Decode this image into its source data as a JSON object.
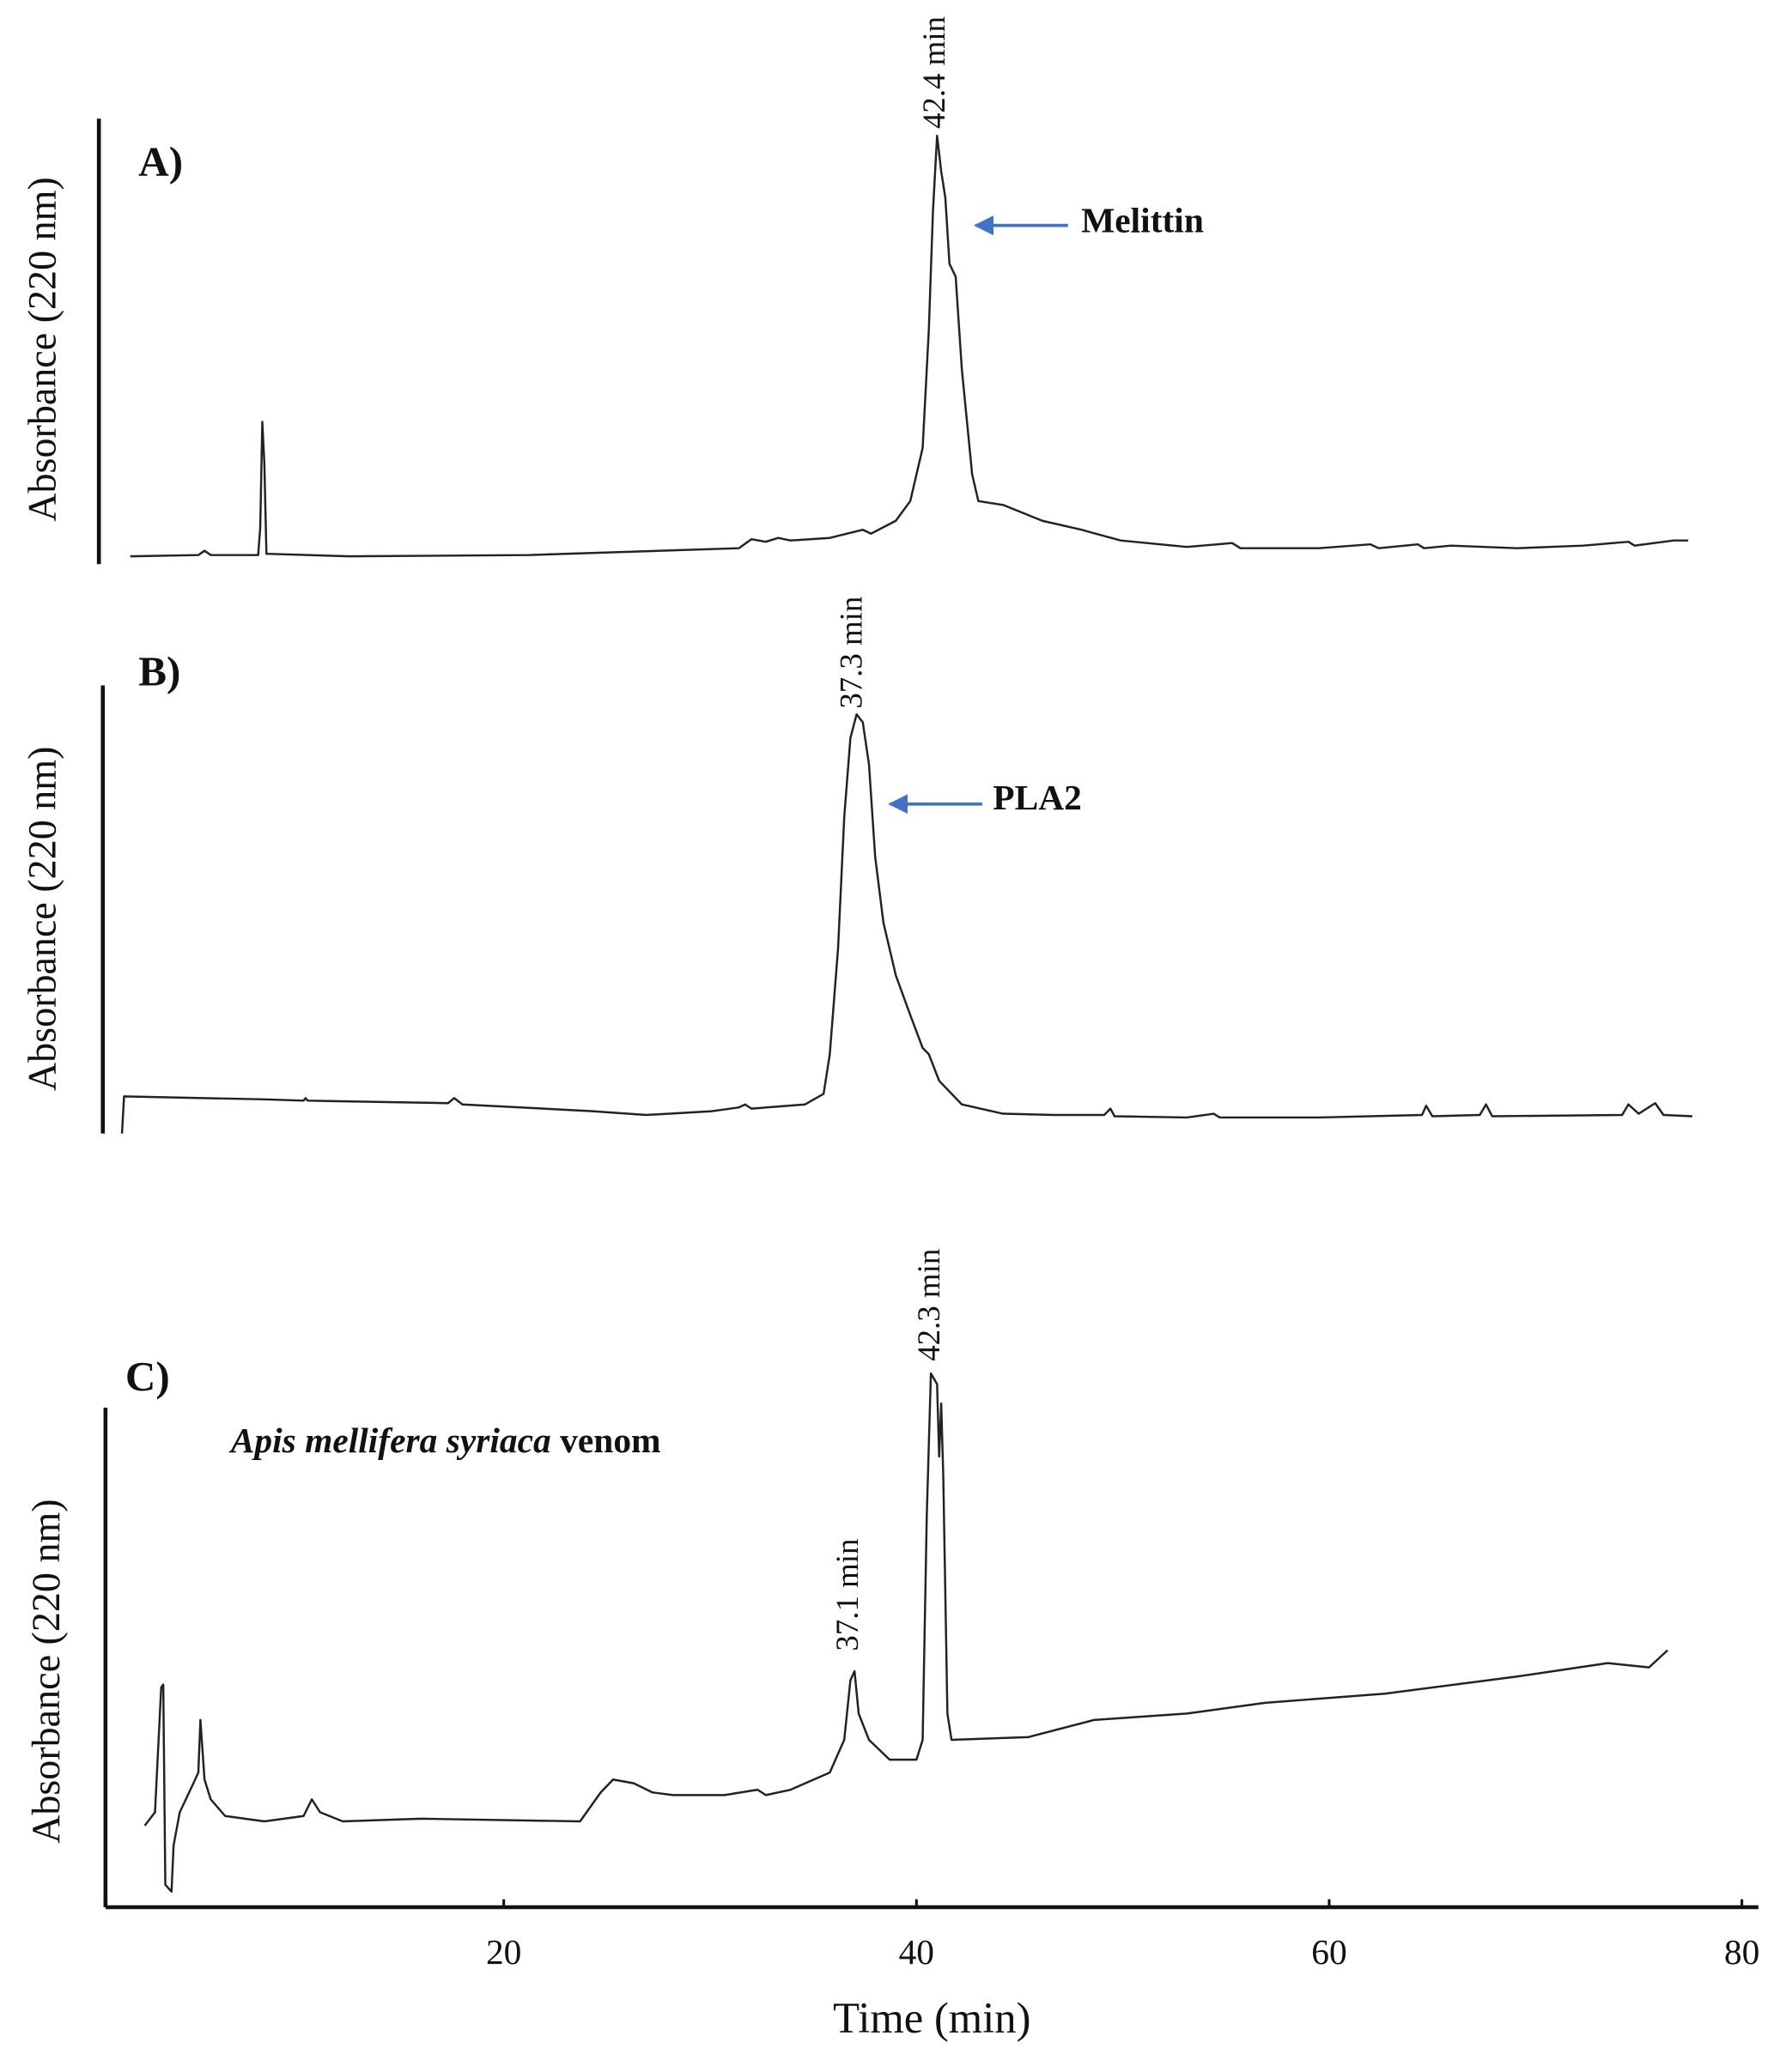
{
  "chart_data": [
    {
      "type": "line",
      "title": "A)",
      "y_label": "Absorbance (220 nm)",
      "color": "#222222",
      "xlim": [
        0.7,
        80.8
      ],
      "ylim": [
        0,
        100
      ],
      "x": [
        1.9,
        5.2,
        5.5,
        5.8,
        8.1,
        8.2,
        8.3,
        8.4,
        8.5,
        12.5,
        21.2,
        31.4,
        32.0,
        32.7,
        33.3,
        33.9,
        35.8,
        37.4,
        37.8,
        39.0,
        39.7,
        40.3,
        40.6,
        40.8,
        41.0,
        41.2,
        41.4,
        41.6,
        41.9,
        42.2,
        42.7,
        43.0,
        44.2,
        46.1,
        48.0,
        49.9,
        53.1,
        55.3,
        55.7,
        59.5,
        62.0,
        62.4,
        64.3,
        64.6,
        65.9,
        69.1,
        72.3,
        74.5,
        74.8,
        76.7,
        77.4
      ],
      "values": [
        0.9,
        1.2,
        2.2,
        1.2,
        1.2,
        7.7,
        32.3,
        22.5,
        1.5,
        0.9,
        1.2,
        2.8,
        4.9,
        4.3,
        5.2,
        4.6,
        5.2,
        7.1,
        6.2,
        9.2,
        13.8,
        26.2,
        53.8,
        81.5,
        99.1,
        90.8,
        84.6,
        69.2,
        66.2,
        44.6,
        20.0,
        13.8,
        12.9,
        9.2,
        7.1,
        4.6,
        3.1,
        4.0,
        2.8,
        2.8,
        3.7,
        2.8,
        3.7,
        2.8,
        3.4,
        2.8,
        3.4,
        4.3,
        3.4,
        4.6,
        4.6
      ],
      "annotations": [
        {
          "text": "42.4 min"
        },
        {
          "text": "Melittin",
          "arrow_color": "#4472c4"
        }
      ]
    },
    {
      "type": "line",
      "title": "B)",
      "y_label": "Absorbance (220 nm)",
      "color": "#222222",
      "xlim": [
        0.7,
        80.8
      ],
      "ylim": [
        0,
        100
      ],
      "x": [
        1.5,
        1.6,
        8.4,
        10.3,
        10.4,
        10.5,
        17.3,
        17.6,
        18.0,
        24.3,
        26.9,
        30.1,
        31.4,
        31.7,
        32.0,
        34.6,
        35.5,
        35.8,
        36.2,
        36.5,
        36.8,
        37.1,
        37.4,
        37.7,
        38.0,
        38.4,
        39.0,
        39.7,
        40.3,
        40.6,
        41.1,
        42.2,
        44.2,
        46.7,
        49.1,
        49.4,
        49.6,
        53.1,
        54.4,
        54.7,
        59.5,
        64.5,
        64.7,
        65.0,
        67.3,
        67.6,
        67.9,
        74.2,
        74.5,
        75.0,
        75.8,
        76.2,
        77.6
      ],
      "values": [
        0,
        8.8,
        8.1,
        7.8,
        8.4,
        7.8,
        7.2,
        8.4,
        6.9,
        5.3,
        4.4,
        5.3,
        6.2,
        6.9,
        5.9,
        6.9,
        9.4,
        18.8,
        43.8,
        75.0,
        93.8,
        99.4,
        97.5,
        87.5,
        65.6,
        50.0,
        37.5,
        28.1,
        20.3,
        18.8,
        12.5,
        6.9,
        4.7,
        4.4,
        4.4,
        5.9,
        4.1,
        3.8,
        4.7,
        3.8,
        3.8,
        4.4,
        6.6,
        4.1,
        4.4,
        6.9,
        4.1,
        4.4,
        6.9,
        4.7,
        7.2,
        4.4,
        4.1
      ],
      "annotations": [
        {
          "text": "37.3 min"
        },
        {
          "text": "PLA2",
          "arrow_color": "#4472c4"
        }
      ]
    },
    {
      "type": "line",
      "title": "C)",
      "y_label": "Absorbance (220 nm)",
      "x_label": "Time (min)",
      "color": "#222222",
      "subtitle": {
        "italic": "Apis mellifera syriaca",
        "bold": "venom"
      },
      "xlim": [
        0.7,
        80.8
      ],
      "ylim": [
        0,
        100
      ],
      "xticks": [
        20,
        40,
        60,
        80
      ],
      "x": [
        2.6,
        3.1,
        3.4,
        3.5,
        3.6,
        3.9,
        4.0,
        4.3,
        4.9,
        5.2,
        5.3,
        5.5,
        5.8,
        6.5,
        8.4,
        10.3,
        10.7,
        11.1,
        12.2,
        16.0,
        23.7,
        24.7,
        25.3,
        26.3,
        27.2,
        28.2,
        30.7,
        32.3,
        32.7,
        33.9,
        35.8,
        36.5,
        36.8,
        37.0,
        37.2,
        37.7,
        38.7,
        40.0,
        40.3,
        40.5,
        40.7,
        41.0,
        41.1,
        41.2,
        41.3,
        41.5,
        41.7,
        45.4,
        48.6,
        53.1,
        56.9,
        62.7,
        69.1,
        73.5,
        75.5,
        76.4
      ],
      "values": [
        15.2,
        17.7,
        41.0,
        41.5,
        4.2,
        2.9,
        11.5,
        17.7,
        22.6,
        25.1,
        34.9,
        23.8,
        20.1,
        17.0,
        16.0,
        17.0,
        20.1,
        17.7,
        16.0,
        16.5,
        16.0,
        21.4,
        23.8,
        23.1,
        21.4,
        20.9,
        20.9,
        21.9,
        20.9,
        21.9,
        25.1,
        31.2,
        42.3,
        44.0,
        36.1,
        31.2,
        27.5,
        27.5,
        31.2,
        73.0,
        99.5,
        97.5,
        84.0,
        93.9,
        80.3,
        36.1,
        31.2,
        31.7,
        34.9,
        36.1,
        38.1,
        39.8,
        43.0,
        45.5,
        44.7,
        47.9
      ],
      "annotations": [
        {
          "text": "42.3 min"
        },
        {
          "text": "37.1 min"
        }
      ]
    }
  ]
}
